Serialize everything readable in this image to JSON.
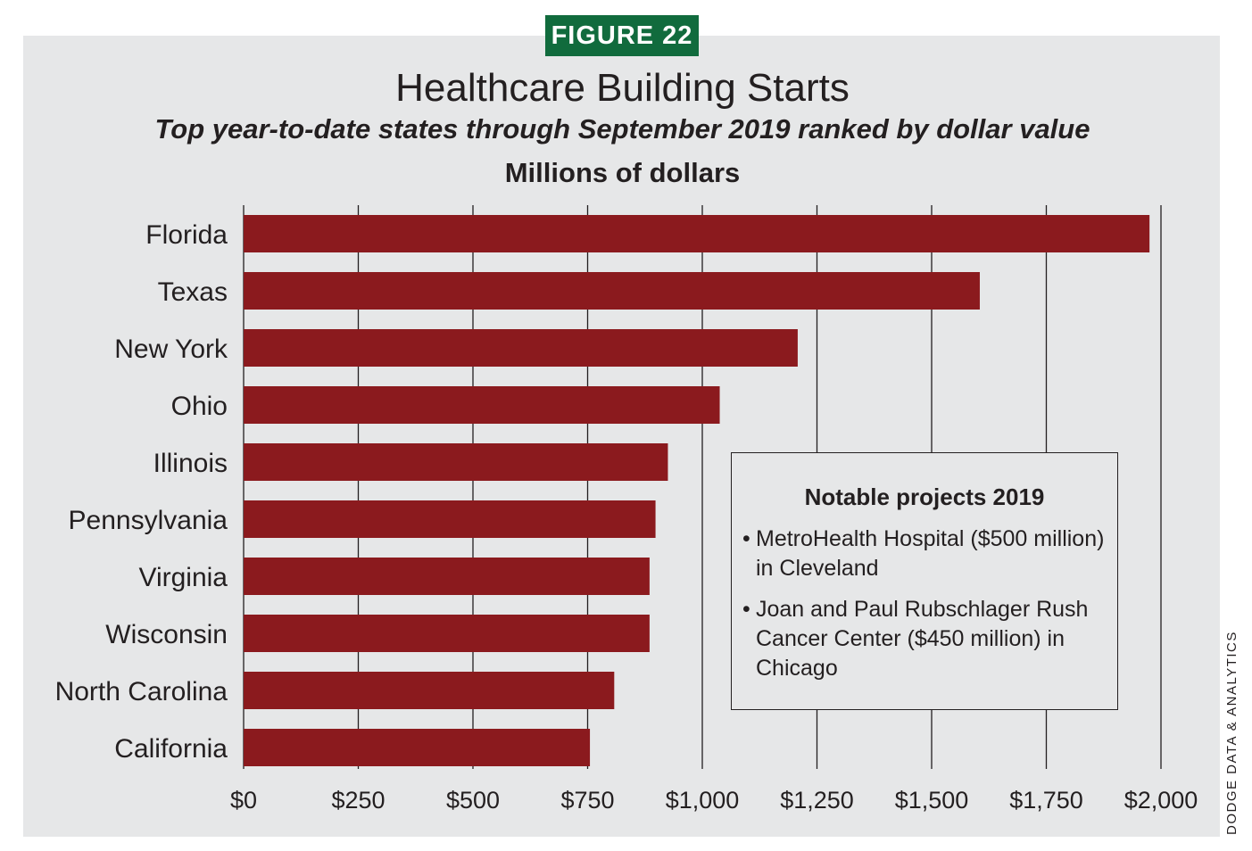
{
  "figure_label": "FIGURE 22",
  "colors": {
    "panel_bg": "#e6e7e8",
    "badge_bg": "#116b3d",
    "bar_fill": "#8b1a1e",
    "text": "#231f20"
  },
  "note": {
    "title": "Notable projects 2019",
    "bullet": "•",
    "items": [
      "MetroHealth Hospital ($500 million) in Cleveland",
      "Joan and Paul Rubschlager Rush Cancer Center ($450 million) in Chicago"
    ]
  },
  "credit": "DODGE DATA & ANALYTICS",
  "chart_data": {
    "type": "bar",
    "orientation": "horizontal",
    "title": "Healthcare Building Starts",
    "subtitle": "Top year-to-date states through September 2019 ranked by dollar value",
    "units_label": "Millions of dollars",
    "categories": [
      "Florida",
      "Texas",
      "New York",
      "Ohio",
      "Illinois",
      "Pennsylvania",
      "Virginia",
      "Wisconsin",
      "North Carolina",
      "California"
    ],
    "values": [
      1975,
      1605,
      1208,
      1038,
      925,
      898,
      885,
      885,
      808,
      755
    ],
    "xlim": [
      0,
      2000
    ],
    "ticks": [
      0,
      250,
      500,
      750,
      1000,
      1250,
      1500,
      1750,
      2000
    ],
    "tick_labels": [
      "$0",
      "$250",
      "$500",
      "$750",
      "$1,000",
      "$1,250",
      "$1,500",
      "$1,750",
      "$2,000"
    ],
    "grid": true,
    "legend": "none"
  }
}
